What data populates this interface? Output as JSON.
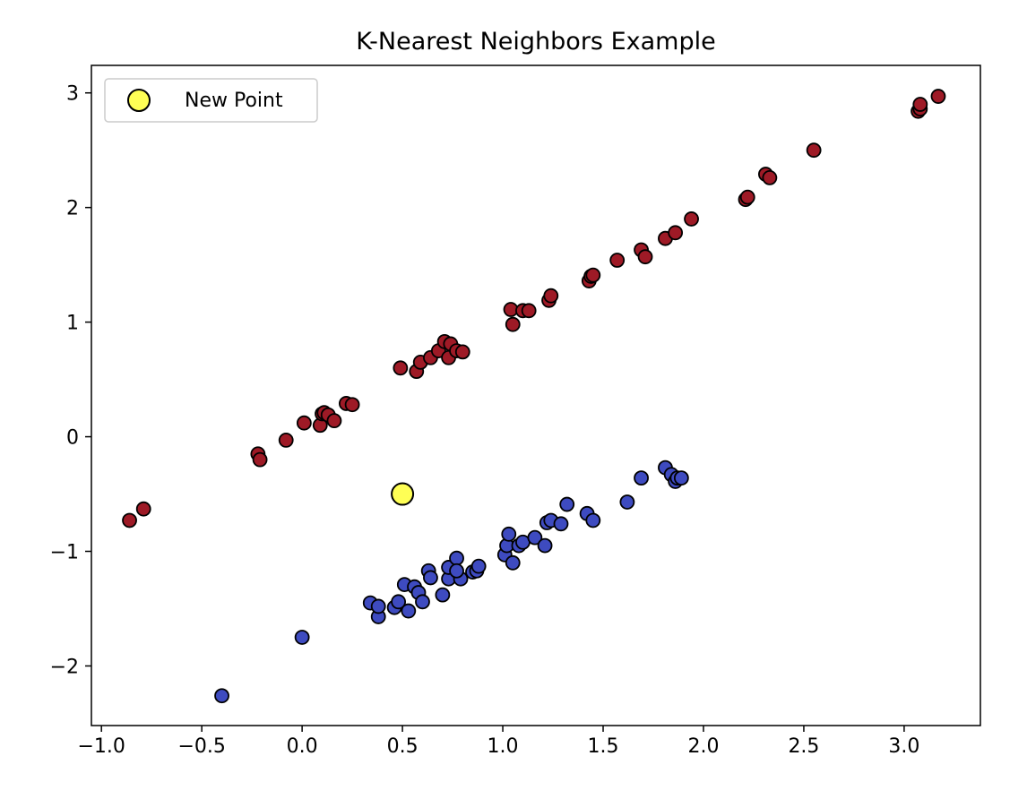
{
  "chart_data": {
    "type": "scatter",
    "title": "K-Nearest Neighbors Example",
    "xlabel": "",
    "ylabel": "",
    "xlim": [
      -1.05,
      3.38
    ],
    "ylim": [
      -2.52,
      3.24
    ],
    "xticks": [
      -1.0,
      -0.5,
      0.0,
      0.5,
      1.0,
      1.5,
      2.0,
      2.5,
      3.0
    ],
    "xtick_labels": [
      "−1.0",
      "−0.5",
      "0.0",
      "0.5",
      "1.0",
      "1.5",
      "2.0",
      "2.5",
      "3.0"
    ],
    "yticks": [
      -2,
      -1,
      0,
      1,
      2,
      3
    ],
    "ytick_labels": [
      "−2",
      "−1",
      "0",
      "1",
      "2",
      "3"
    ],
    "grid": false,
    "legend": {
      "position": "upper-left",
      "entries": [
        "New Point"
      ]
    },
    "series": [
      {
        "color": "#9e1a26",
        "points": [
          [
            -0.86,
            -0.73
          ],
          [
            -0.79,
            -0.63
          ],
          [
            -0.22,
            -0.15
          ],
          [
            -0.21,
            -0.2
          ],
          [
            -0.08,
            -0.03
          ],
          [
            0.01,
            0.12
          ],
          [
            0.09,
            0.1
          ],
          [
            0.1,
            0.2
          ],
          [
            0.11,
            0.21
          ],
          [
            0.13,
            0.19
          ],
          [
            0.16,
            0.14
          ],
          [
            0.22,
            0.29
          ],
          [
            0.25,
            0.28
          ],
          [
            0.49,
            0.6
          ],
          [
            0.57,
            0.57
          ],
          [
            0.59,
            0.65
          ],
          [
            0.64,
            0.69
          ],
          [
            0.68,
            0.75
          ],
          [
            0.71,
            0.83
          ],
          [
            0.73,
            0.69
          ],
          [
            0.74,
            0.81
          ],
          [
            0.77,
            0.75
          ],
          [
            0.8,
            0.74
          ],
          [
            1.04,
            1.11
          ],
          [
            1.05,
            0.98
          ],
          [
            1.1,
            1.1
          ],
          [
            1.13,
            1.1
          ],
          [
            1.23,
            1.19
          ],
          [
            1.24,
            1.23
          ],
          [
            1.43,
            1.36
          ],
          [
            1.44,
            1.4
          ],
          [
            1.45,
            1.41
          ],
          [
            1.57,
            1.54
          ],
          [
            1.69,
            1.63
          ],
          [
            1.71,
            1.57
          ],
          [
            1.81,
            1.73
          ],
          [
            1.86,
            1.78
          ],
          [
            1.94,
            1.9
          ],
          [
            2.21,
            2.07
          ],
          [
            2.22,
            2.09
          ],
          [
            2.31,
            2.29
          ],
          [
            2.33,
            2.26
          ],
          [
            2.55,
            2.5
          ],
          [
            3.07,
            2.84
          ],
          [
            3.08,
            2.86
          ],
          [
            3.08,
            2.9
          ],
          [
            3.17,
            2.97
          ]
        ]
      },
      {
        "color": "#3e4bc0",
        "points": [
          [
            -0.4,
            -2.26
          ],
          [
            0.0,
            -1.75
          ],
          [
            0.34,
            -1.45
          ],
          [
            0.38,
            -1.57
          ],
          [
            0.38,
            -1.48
          ],
          [
            0.46,
            -1.49
          ],
          [
            0.48,
            -1.44
          ],
          [
            0.51,
            -1.29
          ],
          [
            0.53,
            -1.52
          ],
          [
            0.56,
            -1.31
          ],
          [
            0.58,
            -1.36
          ],
          [
            0.6,
            -1.44
          ],
          [
            0.63,
            -1.17
          ],
          [
            0.64,
            -1.23
          ],
          [
            0.7,
            -1.38
          ],
          [
            0.73,
            -1.24
          ],
          [
            0.73,
            -1.14
          ],
          [
            0.77,
            -1.06
          ],
          [
            0.79,
            -1.24
          ],
          [
            0.77,
            -1.17
          ],
          [
            0.85,
            -1.18
          ],
          [
            0.87,
            -1.17
          ],
          [
            0.88,
            -1.13
          ],
          [
            1.01,
            -1.03
          ],
          [
            1.02,
            -0.95
          ],
          [
            1.03,
            -0.85
          ],
          [
            1.05,
            -1.1
          ],
          [
            1.08,
            -0.95
          ],
          [
            1.1,
            -0.92
          ],
          [
            1.16,
            -0.88
          ],
          [
            1.21,
            -0.95
          ],
          [
            1.22,
            -0.75
          ],
          [
            1.24,
            -0.73
          ],
          [
            1.29,
            -0.76
          ],
          [
            1.32,
            -0.59
          ],
          [
            1.42,
            -0.67
          ],
          [
            1.45,
            -0.73
          ],
          [
            1.62,
            -0.57
          ],
          [
            1.69,
            -0.36
          ],
          [
            1.81,
            -0.27
          ],
          [
            1.84,
            -0.33
          ],
          [
            1.86,
            -0.39
          ],
          [
            1.87,
            -0.36
          ],
          [
            1.89,
            -0.36
          ]
        ]
      }
    ],
    "new_point": {
      "name": "New Point",
      "x": 0.5,
      "y": -0.5,
      "color": "#ffff55"
    }
  }
}
